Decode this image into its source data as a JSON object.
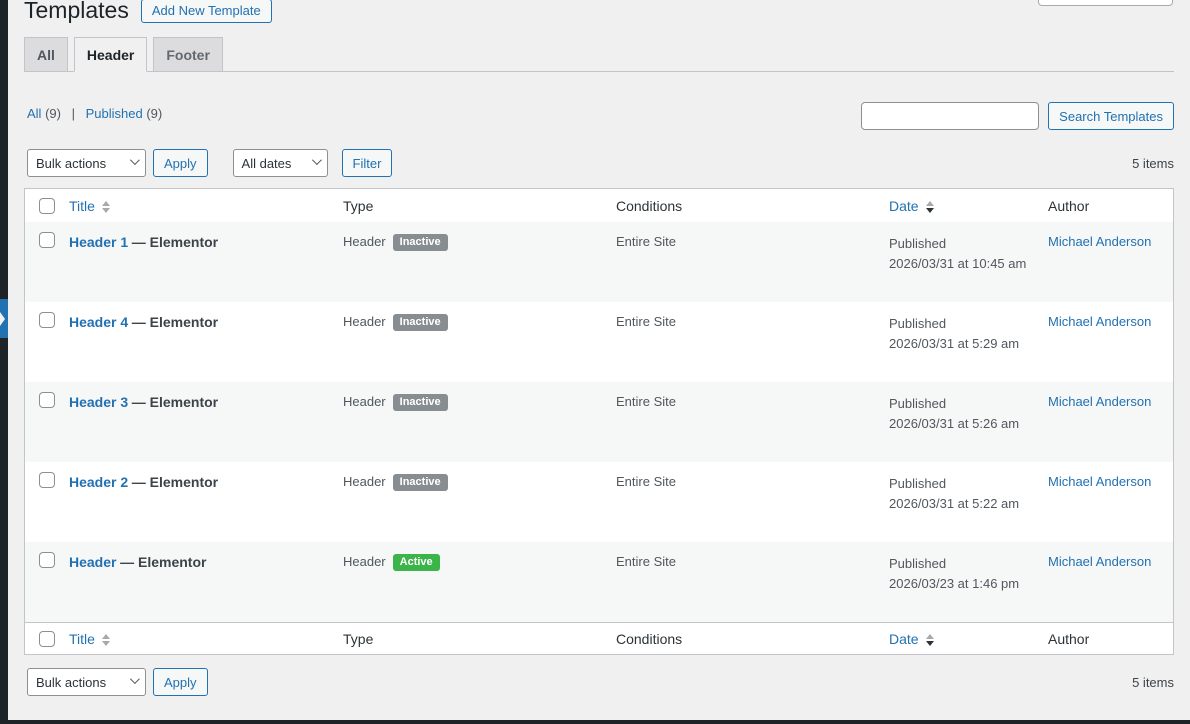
{
  "page": {
    "title": "Templates",
    "add_new_label": "Add New Template"
  },
  "tabs": {
    "items": [
      {
        "label": "All"
      },
      {
        "label": "Header"
      },
      {
        "label": "Footer"
      }
    ],
    "active": "Header"
  },
  "views": {
    "items": [
      {
        "label": "All",
        "count": "(9)"
      },
      {
        "label": "Published",
        "count": "(9)"
      }
    ],
    "separator": "|"
  },
  "search": {
    "value": "",
    "placeholder": "",
    "button_label": "Search Templates"
  },
  "tablenav_top": {
    "bulk_actions": "Bulk actions",
    "apply": "Apply",
    "all_dates": "All dates",
    "filter": "Filter",
    "items": "5 items"
  },
  "tablenav_bottom": {
    "bulk_actions": "Bulk actions",
    "apply": "Apply",
    "items": "5 items"
  },
  "table": {
    "headers": {
      "title": "Title",
      "type": "Type",
      "conditions": "Conditions",
      "date": "Date",
      "author": "Author"
    },
    "rows": [
      {
        "title": "Header 1",
        "suffix": "— Elementor",
        "type": "Header",
        "status": "Inactive",
        "conditions": "Entire Site",
        "date_status": "Published",
        "date": "2026/03/31 at 10:45 am",
        "author": "Michael Anderson"
      },
      {
        "title": "Header 4",
        "suffix": "— Elementor",
        "type": "Header",
        "status": "Inactive",
        "conditions": "Entire Site",
        "date_status": "Published",
        "date": "2026/03/31 at 5:29 am",
        "author": "Michael Anderson"
      },
      {
        "title": "Header 3",
        "suffix": "— Elementor",
        "type": "Header",
        "status": "Inactive",
        "conditions": "Entire Site",
        "date_status": "Published",
        "date": "2026/03/31 at 5:26 am",
        "author": "Michael Anderson"
      },
      {
        "title": "Header 2",
        "suffix": "— Elementor",
        "type": "Header",
        "status": "Inactive",
        "conditions": "Entire Site",
        "date_status": "Published",
        "date": "2026/03/31 at 5:22 am",
        "author": "Michael Anderson"
      },
      {
        "title": "Header",
        "suffix": "— Elementor",
        "type": "Header",
        "status": "Active",
        "conditions": "Entire Site",
        "date_status": "Published",
        "date": "2026/03/23 at 1:46 pm",
        "author": "Michael Anderson"
      }
    ]
  },
  "colors": {
    "accent": "#2271b1",
    "inactive_badge": "#888d92",
    "active_badge": "#3bb54a",
    "dark_edge": "#1d2327",
    "row_stripe": "#f6f7f7"
  }
}
